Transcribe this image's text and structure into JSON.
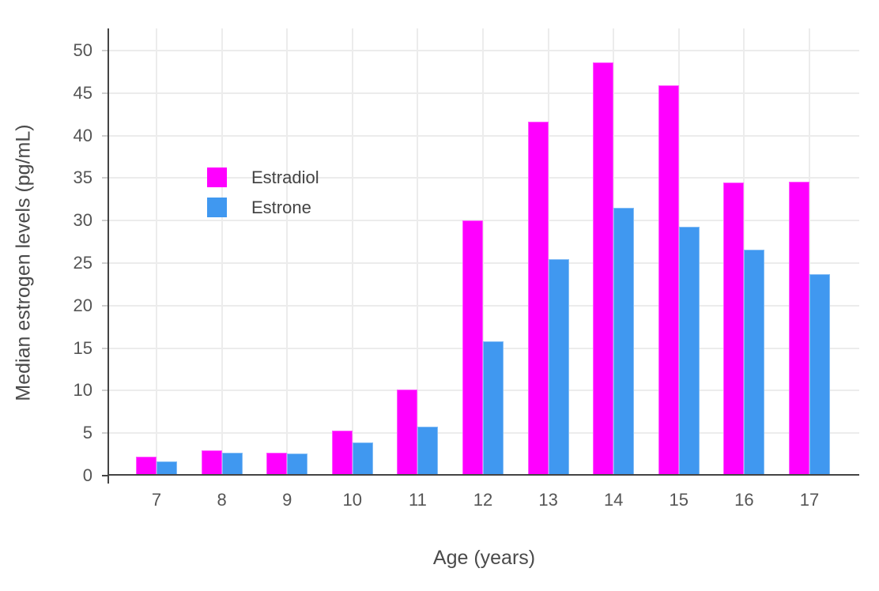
{
  "chart_data": {
    "type": "bar",
    "title": "",
    "xlabel": "Age (years)",
    "ylabel": "Median estrogen levels (pg/mL)",
    "categories": [
      "7",
      "8",
      "9",
      "10",
      "11",
      "12",
      "13",
      "14",
      "15",
      "16",
      "17"
    ],
    "series": [
      {
        "name": "Estradiol",
        "color": "#ff00ff",
        "values": [
          2.2,
          3.0,
          2.7,
          5.3,
          10.1,
          30.0,
          41.6,
          48.6,
          45.9,
          34.5,
          34.6
        ]
      },
      {
        "name": "Estrone",
        "color": "#4098f0",
        "values": [
          1.7,
          2.7,
          2.6,
          3.9,
          5.8,
          15.8,
          25.5,
          31.5,
          29.3,
          26.6,
          23.7
        ]
      }
    ],
    "yticks": [
      0,
      5,
      10,
      15,
      20,
      25,
      30,
      35,
      40,
      45,
      50
    ],
    "ylim": [
      0,
      52.6
    ],
    "grid": true,
    "legend_position": "inside-upper-left",
    "bar_layout": "grouped"
  },
  "style_colors": {
    "gridline": "#ececec",
    "axis_line": "#444444",
    "tick_minor": "#cfcfcf",
    "label_text": "#555555"
  }
}
